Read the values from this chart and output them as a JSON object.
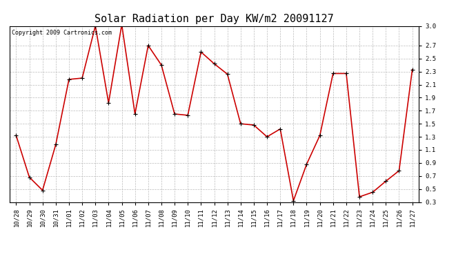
{
  "title": "Solar Radiation per Day KW/m2 20091127",
  "copyright_text": "Copyright 2009 Cartronics.com",
  "labels": [
    "10/28",
    "10/29",
    "10/30",
    "10/31",
    "11/01",
    "11/02",
    "11/03",
    "11/04",
    "11/05",
    "11/06",
    "11/07",
    "11/08",
    "11/09",
    "11/10",
    "11/11",
    "11/12",
    "11/13",
    "11/14",
    "11/15",
    "11/16",
    "11/17",
    "11/18",
    "11/19",
    "11/20",
    "11/21",
    "11/22",
    "11/23",
    "11/24",
    "11/25",
    "11/26",
    "11/27"
  ],
  "values": [
    1.32,
    0.68,
    0.48,
    1.18,
    2.18,
    2.2,
    3.0,
    1.82,
    3.02,
    1.65,
    2.7,
    2.4,
    1.65,
    1.63,
    2.6,
    2.42,
    2.26,
    1.5,
    1.48,
    1.3,
    1.42,
    0.32,
    0.88,
    1.32,
    2.27,
    2.27,
    0.38,
    0.45,
    0.62,
    0.78,
    2.33
  ],
  "line_color": "#cc0000",
  "marker": "+",
  "marker_size": 4,
  "marker_color": "#000000",
  "bg_color": "#ffffff",
  "grid_color": "#bbbbbb",
  "ylim_min": 0.3,
  "ylim_max": 3.0,
  "yticks": [
    0.3,
    0.5,
    0.7,
    0.9,
    1.1,
    1.3,
    1.5,
    1.7,
    1.9,
    2.1,
    2.3,
    2.5,
    2.7,
    3.0
  ],
  "title_fontsize": 11,
  "tick_fontsize": 6.5,
  "copyright_fontsize": 6
}
